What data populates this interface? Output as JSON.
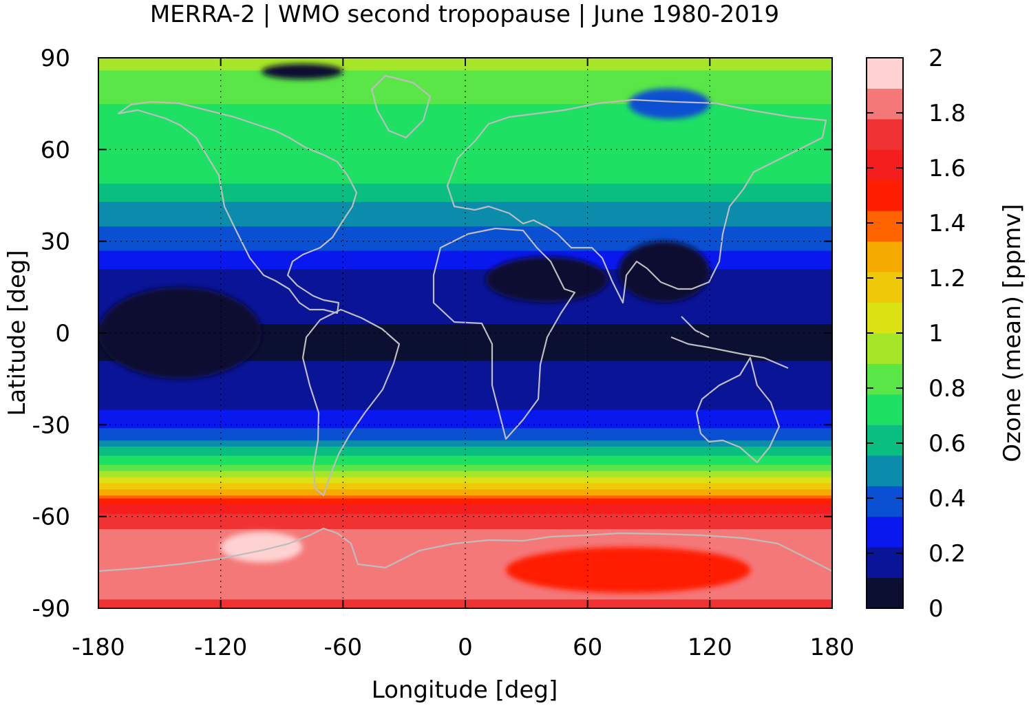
{
  "chart_data": {
    "type": "heatmap",
    "title": "MERRA-2 | WMO second tropopause | June 1980-2019",
    "xlabel": "Longitude [deg]",
    "ylabel": "Latitude [deg]",
    "colorbar_label": "Ozone (mean) [ppmv]",
    "xlim": [
      -180,
      180
    ],
    "ylim": [
      -90,
      90
    ],
    "clim": [
      0,
      2
    ],
    "grid": true,
    "x_ticks": [
      -180,
      -120,
      -60,
      0,
      60,
      120,
      180
    ],
    "y_ticks": [
      -90,
      -60,
      -30,
      0,
      30,
      60,
      90
    ],
    "x_tick_labels": [
      "-180",
      "-120",
      "-60",
      "0",
      "60",
      "120",
      "180"
    ],
    "y_tick_labels": [
      "-90",
      "-60",
      "-30",
      "0",
      "30",
      "60",
      "90"
    ],
    "colorbar_ticks": [
      0,
      0.2,
      0.4,
      0.6,
      0.8,
      1,
      1.2,
      1.4,
      1.6,
      1.8,
      2
    ],
    "colorbar_tick_labels": [
      "0",
      "0.2",
      "0.4",
      "0.6",
      "0.8",
      "1",
      "1.2",
      "1.4",
      "1.6",
      "1.8",
      "2"
    ],
    "color_levels": [
      "#0b1033",
      "#0a1496",
      "#0a18f0",
      "#0a50d2",
      "#0a8caa",
      "#0abe82",
      "#1ee164",
      "#5ae646",
      "#a5e628",
      "#dce114",
      "#f0c80a",
      "#f5aa00",
      "#ff6400",
      "#ff1e00",
      "#f51e1e",
      "#f03232",
      "#f57878",
      "#ffd2d2"
    ],
    "zonal_mean_profile": {
      "lat": [
        -90,
        -85,
        -80,
        -75,
        -70,
        -65,
        -62,
        -58,
        -55,
        -52,
        -50,
        -47,
        -45,
        -42,
        -40,
        -37,
        -35,
        -32,
        -30,
        -25,
        -20,
        -15,
        -10,
        -5,
        0,
        5,
        10,
        15,
        20,
        25,
        30,
        35,
        40,
        45,
        50,
        55,
        60,
        65,
        70,
        75,
        80,
        85,
        90
      ],
      "ozone": [
        1.75,
        1.8,
        1.82,
        1.85,
        1.85,
        1.82,
        1.72,
        1.65,
        1.48,
        1.3,
        1.15,
        1.0,
        0.88,
        0.75,
        0.65,
        0.55,
        0.45,
        0.36,
        0.28,
        0.22,
        0.2,
        0.18,
        0.12,
        0.08,
        0.1,
        0.12,
        0.12,
        0.18,
        0.2,
        0.3,
        0.38,
        0.45,
        0.5,
        0.6,
        0.68,
        0.7,
        0.72,
        0.72,
        0.75,
        0.78,
        0.82,
        0.88,
        0.92
      ]
    },
    "regional_features": [
      {
        "name": "antarctic_maximum",
        "lon": [
          20,
          140
        ],
        "lat": [
          -85,
          -70
        ],
        "ozone": 1.45
      },
      {
        "name": "south_pacific_maximum",
        "lon": [
          -120,
          -80
        ],
        "lat": [
          -75,
          -65
        ],
        "ozone": 1.95
      },
      {
        "name": "tropical_minimum_asia",
        "lon": [
          75,
          120
        ],
        "lat": [
          10,
          30
        ],
        "ozone": 0.05
      },
      {
        "name": "tropical_minimum_pacific",
        "lon": [
          -180,
          -100
        ],
        "lat": [
          -15,
          15
        ],
        "ozone": 0.05
      },
      {
        "name": "tropical_minimum_africa",
        "lon": [
          10,
          70
        ],
        "lat": [
          10,
          25
        ],
        "ozone": 0.05
      },
      {
        "name": "arctic_minimum_siberia",
        "lon": [
          -100,
          -60
        ],
        "lat": [
          83,
          88
        ],
        "ozone": 0.1
      },
      {
        "name": "arctic_minimum_russia",
        "lon": [
          80,
          120
        ],
        "lat": [
          70,
          80
        ],
        "ozone": 0.35
      }
    ]
  }
}
